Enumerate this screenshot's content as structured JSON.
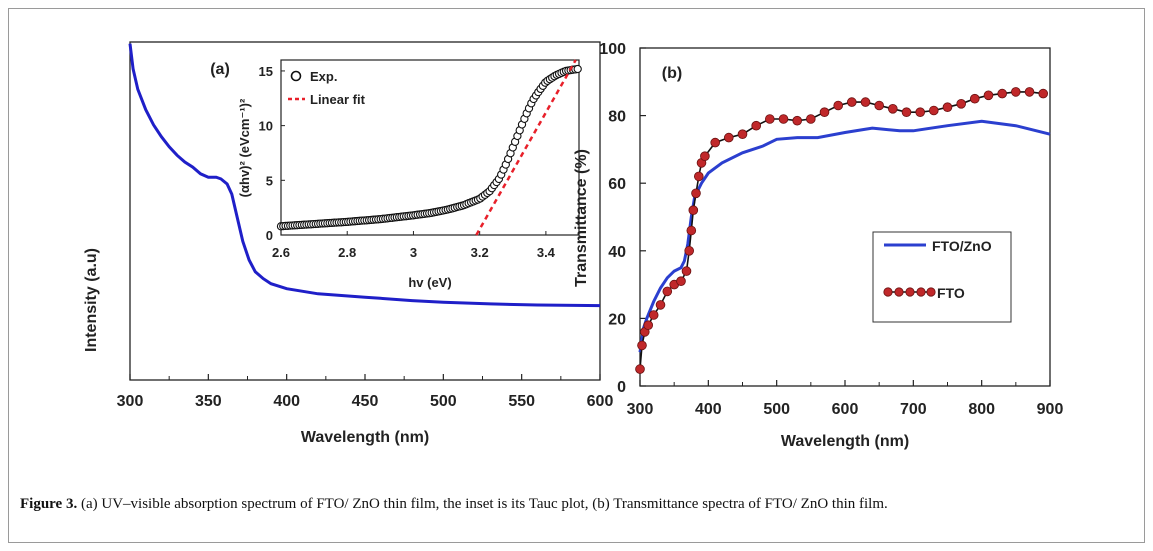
{
  "caption": {
    "label": "Figure 3.",
    "text": " (a) UV–visible absorption spectrum of FTO/ ZnO thin film, the inset is its Tauc plot, (b) Transmittance spectra of FTO/ ZnO thin film."
  },
  "colors": {
    "absorption": "#1f1fc8",
    "ftozno": "#2b3fcf",
    "fto_line": "#111111",
    "fto_marker": "#c0282a",
    "tauc_marker": "#111111",
    "fit": "#e8202a"
  },
  "chart_data": [
    {
      "id": "a",
      "panel_label": "(a)",
      "type": "line",
      "xlabel": "Wavelength (nm)",
      "ylabel": "Intensity (a.u)",
      "xlim": [
        300,
        600
      ],
      "ylim": [
        0,
        1
      ],
      "x_ticks": [
        300,
        350,
        400,
        450,
        500,
        550,
        600
      ],
      "y_ticks": [],
      "series": [
        {
          "key": "absorption",
          "x": [
            300,
            302,
            305,
            310,
            315,
            320,
            325,
            330,
            335,
            340,
            345,
            350,
            355,
            358,
            362,
            365,
            368,
            372,
            376,
            380,
            385,
            390,
            400,
            420,
            450,
            480,
            500,
            530,
            560,
            600
          ],
          "y": [
            0.995,
            0.92,
            0.86,
            0.8,
            0.755,
            0.72,
            0.69,
            0.665,
            0.645,
            0.63,
            0.61,
            0.6,
            0.6,
            0.595,
            0.58,
            0.55,
            0.49,
            0.41,
            0.355,
            0.32,
            0.3,
            0.285,
            0.27,
            0.255,
            0.245,
            0.235,
            0.23,
            0.225,
            0.222,
            0.22
          ]
        }
      ],
      "inset": {
        "type": "scatter",
        "xlabel": "hv (eV)",
        "ylabel": "(αhv)² (eVcm⁻¹)²",
        "xlim": [
          2.6,
          3.5
        ],
        "ylim": [
          0,
          16
        ],
        "x_ticks": [
          2.6,
          2.8,
          3,
          3.2,
          3.4
        ],
        "x_tick_labels": [
          "2.6",
          "2.8",
          "3",
          "3.2",
          "3.4"
        ],
        "y_ticks": [
          0,
          5,
          10,
          15
        ],
        "legend": [
          {
            "key": "exp",
            "label": "Exp."
          },
          {
            "key": "fit",
            "label": "Linear fit"
          }
        ],
        "exp": {
          "x": [
            2.6,
            2.7,
            2.8,
            2.9,
            3.0,
            3.05,
            3.1,
            3.15,
            3.2,
            3.23,
            3.26,
            3.28,
            3.3,
            3.32,
            3.34,
            3.36,
            3.38,
            3.4,
            3.43,
            3.46,
            3.5
          ],
          "y": [
            0.8,
            1.0,
            1.2,
            1.45,
            1.8,
            2.0,
            2.3,
            2.7,
            3.3,
            4.0,
            5.2,
            6.5,
            8.0,
            9.5,
            11.0,
            12.3,
            13.2,
            14.0,
            14.6,
            15.0,
            15.2
          ]
        },
        "fit": {
          "x": [
            3.19,
            3.49
          ],
          "y": [
            0,
            16
          ]
        }
      }
    },
    {
      "id": "b",
      "panel_label": "(b)",
      "type": "line",
      "xlabel": "Wavelength (nm)",
      "ylabel": "Transmittance (%)",
      "xlim": [
        300,
        900
      ],
      "ylim": [
        0,
        100
      ],
      "x_ticks": [
        300,
        400,
        500,
        600,
        700,
        800,
        900
      ],
      "y_ticks": [
        0,
        20,
        40,
        60,
        80,
        100
      ],
      "legend": [
        {
          "key": "ftozno",
          "label": "FTO/ZnO"
        },
        {
          "key": "fto",
          "label": "FTO"
        }
      ],
      "series": [
        {
          "key": "ftozno",
          "name": "FTO/ZnO",
          "x": [
            300,
            305,
            310,
            320,
            330,
            340,
            350,
            360,
            365,
            370,
            375,
            380,
            390,
            400,
            420,
            450,
            480,
            500,
            530,
            560,
            600,
            640,
            680,
            700,
            750,
            800,
            850,
            900
          ],
          "y": [
            10,
            17,
            20,
            25,
            29,
            32,
            34,
            35,
            37,
            42,
            50,
            56,
            60,
            63,
            66,
            69,
            71,
            73,
            73.5,
            73.5,
            75,
            76.3,
            75.5,
            75.5,
            77,
            78.3,
            77,
            74.5
          ]
        },
        {
          "key": "fto",
          "name": "FTO",
          "x": [
            300,
            303,
            307,
            312,
            320,
            330,
            340,
            350,
            360,
            368,
            372,
            375,
            378,
            382,
            386,
            390,
            395,
            410,
            430,
            450,
            470,
            490,
            510,
            530,
            550,
            570,
            590,
            610,
            630,
            650,
            670,
            690,
            710,
            730,
            750,
            770,
            790,
            810,
            830,
            850,
            870,
            890
          ],
          "y": [
            5,
            12,
            16,
            18,
            21,
            24,
            28,
            30,
            31,
            34,
            40,
            46,
            52,
            57,
            62,
            66,
            68,
            72,
            73.5,
            74.5,
            77,
            79,
            79,
            78.5,
            79,
            81,
            83,
            84,
            84,
            83,
            82,
            81,
            81,
            81.5,
            82.5,
            83.5,
            85,
            86,
            86.5,
            87,
            87,
            86.5
          ]
        }
      ]
    }
  ]
}
